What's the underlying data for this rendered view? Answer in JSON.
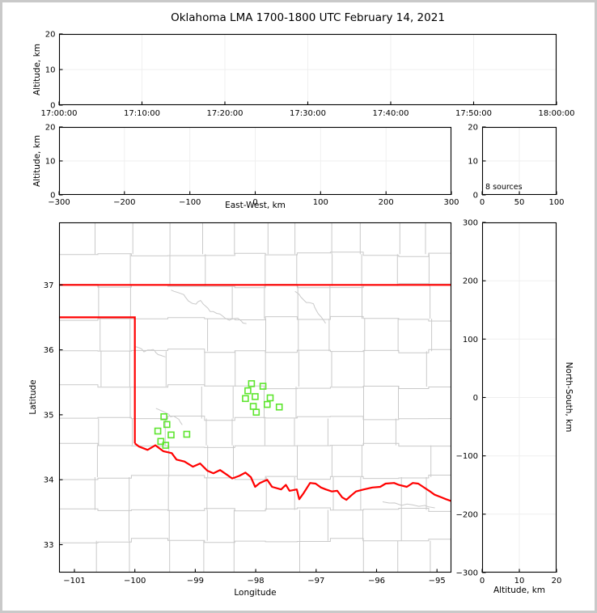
{
  "title": "Oklahoma LMA 1700-1800 UTC February 14, 2021",
  "colors": {
    "state_border": "#ff0000",
    "county_lines": "#c9c9c9",
    "river_lines": "#c9c9c9",
    "station_marker": "#5de52e",
    "gridline": "#efefef",
    "axis": "#000000",
    "frame": "#c9c9c9",
    "background": "#ffffff"
  },
  "panels": {
    "time_altitude": {
      "ylabel": "Altitude, km",
      "yticks": [
        "0",
        "10",
        "20"
      ],
      "xticks": [
        "17:00:00",
        "17:10:00",
        "17:20:00",
        "17:30:00",
        "17:40:00",
        "17:50:00",
        "18:00:00"
      ]
    },
    "ew_altitude": {
      "ylabel": "Altitude, km",
      "xlabel": "East-West, km",
      "yticks": [
        "0",
        "10",
        "20"
      ],
      "xticks": [
        "−300",
        "−200",
        "−100",
        "0",
        "100",
        "200",
        "300"
      ]
    },
    "alt_histogram": {
      "annotation": "8 sources",
      "yticks": [
        "0",
        "10",
        "20"
      ],
      "xticks": [
        "0",
        "50",
        "100"
      ]
    },
    "map": {
      "ylabel": "Latitude",
      "xlabel": "Longitude",
      "yticks": [
        "37",
        "36",
        "35",
        "34",
        "33"
      ],
      "xticks": [
        "−101",
        "−100",
        "−99",
        "−98",
        "−97",
        "−96",
        "−95"
      ]
    },
    "ns_altitude": {
      "ylabel_right": "North-South, km",
      "xlabel": "Altitude, km",
      "yticks": [
        "300",
        "200",
        "100",
        "0",
        "−100",
        "−200",
        "−300"
      ],
      "xticks": [
        "0",
        "10",
        "20"
      ]
    }
  },
  "chart_data": {
    "type": "scatter",
    "title": "Oklahoma LMA 1700-1800 UTC February 14, 2021",
    "source_count_label": "8 sources",
    "legend_position": "none",
    "panels": [
      {
        "id": "time_altitude",
        "ylabel": "Altitude, km",
        "xlim": [
          "17:00:00",
          "18:00:00"
        ],
        "ylim": [
          0,
          20
        ],
        "points": [],
        "grid": true
      },
      {
        "id": "ew_altitude",
        "xlabel": "East-West, km",
        "ylabel": "Altitude, km",
        "xlim": [
          -300,
          300
        ],
        "ylim": [
          0,
          20
        ],
        "points": [],
        "grid": true
      },
      {
        "id": "alt_histogram",
        "xlim": [
          0,
          100
        ],
        "ylim": [
          0,
          20
        ],
        "annotation": "8 sources",
        "bars": [],
        "grid": true
      },
      {
        "id": "plan_view_map",
        "xlabel": "Longitude",
        "ylabel": "Latitude",
        "xlim": [
          -101.25,
          -94.76
        ],
        "ylim": [
          32.57,
          37.96
        ],
        "grid": false
      },
      {
        "id": "ns_altitude",
        "xlabel": "Altitude, km",
        "ylabel": "North-South, km",
        "xlim": [
          0,
          20
        ],
        "ylim": [
          -300,
          300
        ],
        "points": [],
        "grid": true
      }
    ],
    "lma_stations_lonlat": [
      [
        -98.07,
        35.48
      ],
      [
        -97.88,
        35.44
      ],
      [
        -98.13,
        35.37
      ],
      [
        -98.01,
        35.28
      ],
      [
        -98.17,
        35.25
      ],
      [
        -97.76,
        35.26
      ],
      [
        -97.81,
        35.16
      ],
      [
        -98.04,
        35.13
      ],
      [
        -97.61,
        35.12
      ],
      [
        -97.99,
        35.04
      ],
      [
        -99.52,
        34.97
      ],
      [
        -99.47,
        34.85
      ],
      [
        -99.62,
        34.75
      ],
      [
        -99.4,
        34.69
      ],
      [
        -99.14,
        34.7
      ],
      [
        -99.57,
        34.59
      ],
      [
        -99.49,
        34.53
      ]
    ],
    "oklahoma_border_lonlat": {
      "kansas_line": [
        [
          -101.25,
          37.0
        ],
        [
          -94.76,
          37.0
        ]
      ],
      "panhandle": [
        [
          -101.25,
          36.5
        ],
        [
          -100.0,
          36.5
        ],
        [
          -100.0,
          34.56
        ]
      ],
      "red_river": [
        [
          -100.0,
          34.56
        ],
        [
          -99.93,
          34.51
        ],
        [
          -99.79,
          34.46
        ],
        [
          -99.66,
          34.53
        ],
        [
          -99.53,
          34.44
        ],
        [
          -99.39,
          34.41
        ],
        [
          -99.31,
          34.31
        ],
        [
          -99.18,
          34.28
        ],
        [
          -99.04,
          34.2
        ],
        [
          -98.92,
          34.25
        ],
        [
          -98.8,
          34.14
        ],
        [
          -98.7,
          34.1
        ],
        [
          -98.59,
          34.15
        ],
        [
          -98.48,
          34.08
        ],
        [
          -98.39,
          34.02
        ],
        [
          -98.27,
          34.06
        ],
        [
          -98.17,
          34.11
        ],
        [
          -98.08,
          34.04
        ],
        [
          -98.01,
          33.89
        ],
        [
          -97.93,
          33.95
        ],
        [
          -97.81,
          34.0
        ],
        [
          -97.73,
          33.89
        ],
        [
          -97.58,
          33.85
        ],
        [
          -97.5,
          33.92
        ],
        [
          -97.44,
          33.83
        ],
        [
          -97.32,
          33.85
        ],
        [
          -97.28,
          33.7
        ],
        [
          -97.21,
          33.79
        ],
        [
          -97.1,
          33.95
        ],
        [
          -97.01,
          33.94
        ],
        [
          -96.92,
          33.88
        ],
        [
          -96.84,
          33.85
        ],
        [
          -96.74,
          33.82
        ],
        [
          -96.65,
          33.83
        ],
        [
          -96.57,
          33.73
        ],
        [
          -96.5,
          33.69
        ],
        [
          -96.43,
          33.75
        ],
        [
          -96.34,
          33.82
        ],
        [
          -96.21,
          33.85
        ],
        [
          -96.07,
          33.88
        ],
        [
          -95.94,
          33.89
        ],
        [
          -95.85,
          33.94
        ],
        [
          -95.71,
          33.95
        ],
        [
          -95.63,
          33.92
        ],
        [
          -95.5,
          33.89
        ],
        [
          -95.4,
          33.95
        ],
        [
          -95.31,
          33.94
        ],
        [
          -95.23,
          33.89
        ],
        [
          -95.13,
          33.83
        ],
        [
          -95.04,
          33.77
        ],
        [
          -94.93,
          33.73
        ],
        [
          -94.85,
          33.7
        ],
        [
          -94.76,
          33.67
        ]
      ]
    },
    "rivers_lonlat": [
      [
        [
          -99.4,
          36.92
        ],
        [
          -99.2,
          36.85
        ],
        [
          -99.05,
          36.7
        ],
        [
          -98.9,
          36.75
        ],
        [
          -98.75,
          36.6
        ],
        [
          -98.6,
          36.55
        ],
        [
          -98.45,
          36.45
        ],
        [
          -98.3,
          36.48
        ],
        [
          -98.15,
          36.4
        ]
      ],
      [
        [
          -100.0,
          36.05
        ],
        [
          -99.85,
          35.98
        ],
        [
          -99.7,
          36.0
        ],
        [
          -99.6,
          35.92
        ],
        [
          -99.5,
          35.9
        ]
      ],
      [
        [
          -97.35,
          36.9
        ],
        [
          -97.2,
          36.75
        ],
        [
          -97.05,
          36.7
        ],
        [
          -96.95,
          36.55
        ],
        [
          -96.85,
          36.4
        ]
      ],
      [
        [
          -99.65,
          35.1
        ],
        [
          -99.45,
          35.0
        ],
        [
          -99.3,
          34.95
        ],
        [
          -99.2,
          34.85
        ]
      ],
      [
        [
          -95.9,
          33.66
        ],
        [
          -95.6,
          33.62
        ],
        [
          -95.3,
          33.6
        ],
        [
          -95.05,
          33.57
        ]
      ]
    ]
  }
}
